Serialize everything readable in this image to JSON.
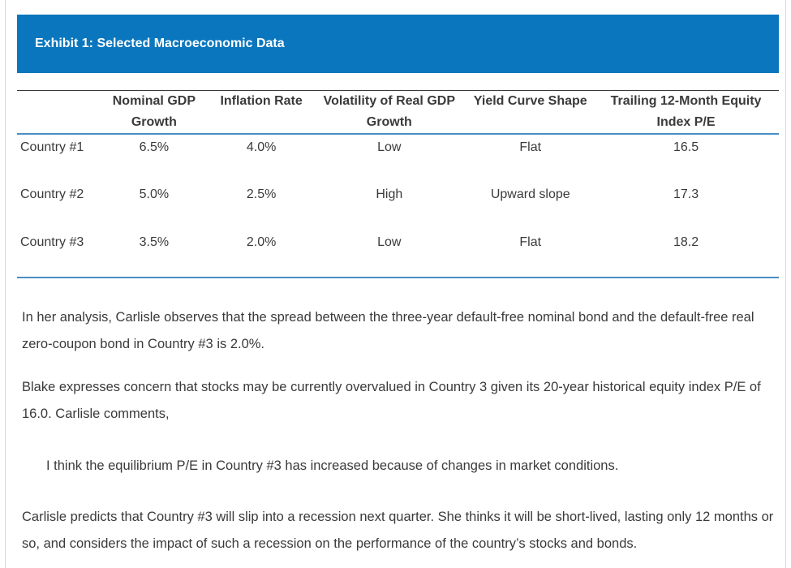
{
  "exhibit": {
    "title": "Exhibit 1: Selected Macroeconomic Data"
  },
  "table": {
    "headers": [
      "",
      "Nominal GDP Growth",
      "Inflation Rate",
      "Volatility of Real GDP Growth",
      "Yield Curve Shape",
      "Trailing 12-Month Equity Index P/E"
    ],
    "rows": [
      [
        "Country #1",
        "6.5%",
        "4.0%",
        "Low",
        "Flat",
        "16.5"
      ],
      [
        "Country #2",
        "5.0%",
        "2.5%",
        "High",
        "Upward slope",
        "17.3"
      ],
      [
        "Country #3",
        "3.5%",
        "2.0%",
        "Low",
        "Flat",
        "18.2"
      ]
    ]
  },
  "paragraphs": {
    "p1": "In her analysis, Carlisle observes that the spread between the three-year default-free nominal bond and the default-free real zero-coupon bond in Country #3 is 2.0%.",
    "p2": "Blake expresses concern that stocks may be currently overvalued in Country 3 given its 20-year historical equity index P/E of 16.0. Carlisle comments,",
    "quote": "I think the equilibrium P/E in Country #3 has increased because of changes in market conditions.",
    "p3": "Carlisle predicts that Country #3 will slip into a recession next quarter. She thinks it will be short-lived, lasting only 12 months or so, and considers the impact of such a recession on the performance of the country’s stocks and bonds."
  }
}
